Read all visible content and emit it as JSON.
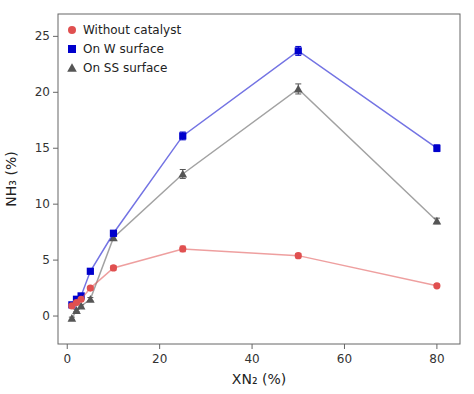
{
  "chart_data": {
    "type": "line",
    "x_label": "XN₂ (%)",
    "y_label": "NH₃ (%)",
    "x": [
      1,
      2,
      3,
      5,
      10,
      25,
      50,
      80
    ],
    "series": [
      {
        "name": "Without catalyst",
        "color": "#e05050",
        "marker": "circle",
        "values": [
          0.9,
          1.2,
          1.5,
          2.5,
          4.3,
          6.0,
          5.4,
          2.7
        ],
        "errors": [
          0.1,
          0.1,
          0.1,
          0.15,
          0.2,
          0.25,
          0.2,
          0.15
        ]
      },
      {
        "name": "On W surface",
        "color": "#0000cc",
        "marker": "square",
        "values": [
          1.0,
          1.5,
          1.8,
          4.0,
          7.4,
          16.1,
          23.7,
          15.0
        ],
        "errors": [
          0.1,
          0.1,
          0.15,
          0.2,
          0.25,
          0.35,
          0.4,
          0.3
        ]
      },
      {
        "name": "On SS surface",
        "color": "#555555",
        "marker": "triangle",
        "values": [
          -0.2,
          0.5,
          0.9,
          1.5,
          7.0,
          12.7,
          20.3,
          8.5
        ],
        "errors": [
          0.1,
          0.1,
          0.1,
          0.15,
          0.25,
          0.4,
          0.45,
          0.25
        ]
      }
    ],
    "xlim": [
      -2,
      85
    ],
    "ylim": [
      -2.5,
      27
    ],
    "xticks": [
      0,
      20,
      40,
      60,
      80
    ],
    "yticks": [
      0,
      5,
      10,
      15,
      20,
      25
    ],
    "grid": false,
    "legend": "upper left"
  }
}
